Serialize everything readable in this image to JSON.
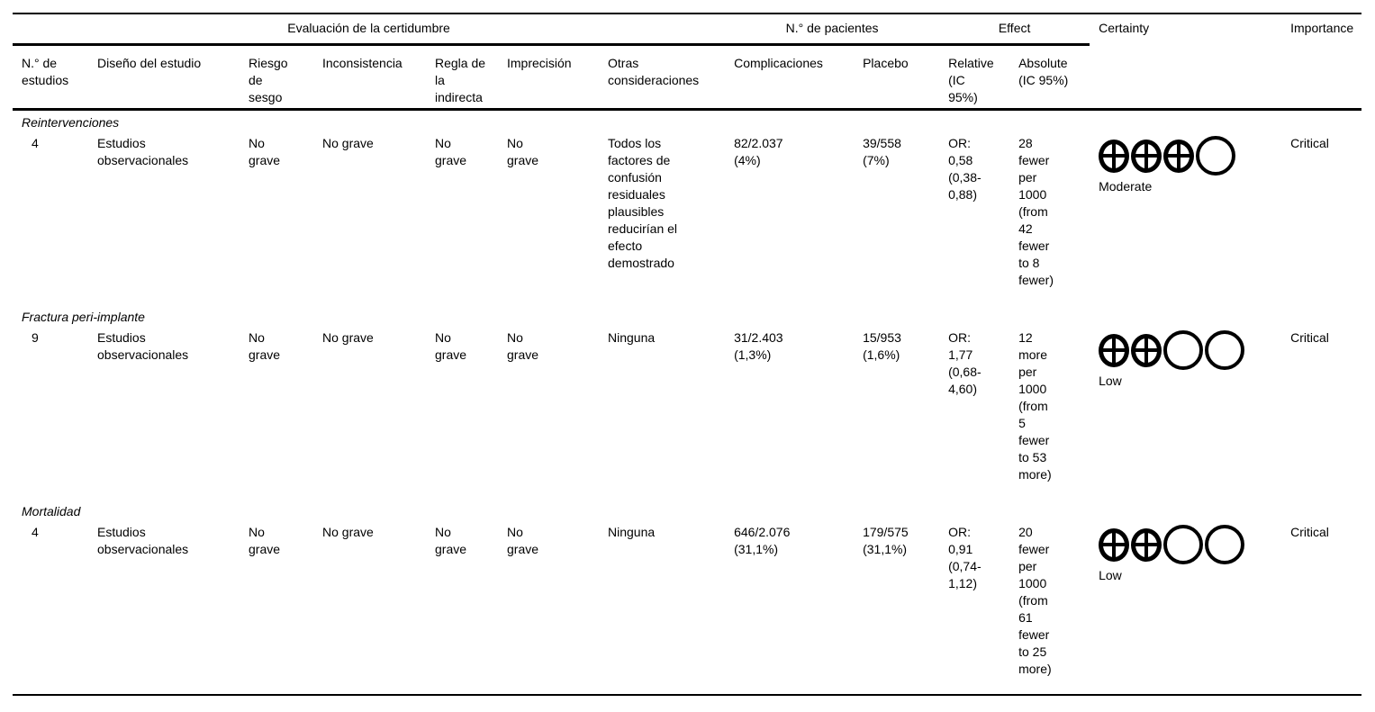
{
  "colors": {
    "text": "#000000",
    "rule": "#000000",
    "background": "#ffffff"
  },
  "table": {
    "groups": {
      "evaluacion": "Evaluación de la certidumbre",
      "pacientes": "N.° de pacientes",
      "effect": "Effect",
      "certainty": "Certainty",
      "importance": "Importance"
    },
    "columns": {
      "n_estudios": "N.° de\nestudios",
      "diseno": "Diseño del estudio",
      "riesgo": "Riesgo\nde\nsesgo",
      "inconsistencia": "Inconsistencia",
      "regla": "Regla de\nla\nindirecta",
      "imprecision": "Imprecisión",
      "otras": "Otras\nconsideraciones",
      "complicaciones": "Complicaciones",
      "placebo": "Placebo",
      "relative": "Relative\n(IC\n95%)",
      "absolute": "Absolute\n(IC 95%)"
    },
    "sections": [
      {
        "title": "Reintervenciones",
        "row": {
          "n_estudios": "4",
          "diseno": "Estudios\nobservacionales",
          "riesgo": "No\ngrave",
          "inconsistencia": "No grave",
          "regla": "No\ngrave",
          "imprecision": "No\ngrave",
          "otras": "Todos los\nfactores de\nconfusión\nresiduales\nplausibles\nreducirían el\nefecto\ndemostrado",
          "complicaciones": "82/2.037\n(4%)",
          "placebo": "39/558\n(7%)",
          "relative": "OR:\n0,58\n(0,38-\n0,88)",
          "absolute": "28\nfewer\nper\n1000\n(from\n42\nfewer\nto 8\nfewer)",
          "certainty": {
            "icons": [
              "plus",
              "plus",
              "plus",
              "empty"
            ],
            "label": "Moderate"
          },
          "importance": "Critical"
        }
      },
      {
        "title": "Fractura peri-implante",
        "row": {
          "n_estudios": "9",
          "diseno": "Estudios\nobservacionales",
          "riesgo": "No\ngrave",
          "inconsistencia": "No grave",
          "regla": "No\ngrave",
          "imprecision": "No\ngrave",
          "otras": "Ninguna",
          "complicaciones": "31/2.403\n(1,3%)",
          "placebo": "15/953\n(1,6%)",
          "relative": "OR:\n1,77\n(0,68-\n4,60)",
          "absolute": "12\nmore\nper\n1000\n(from\n5\nfewer\nto 53\nmore)",
          "certainty": {
            "icons": [
              "plus",
              "plus",
              "empty",
              "empty"
            ],
            "label": "Low"
          },
          "importance": "Critical"
        }
      },
      {
        "title": "Mortalidad",
        "row": {
          "n_estudios": "4",
          "diseno": "Estudios\nobservacionales",
          "riesgo": "No\ngrave",
          "inconsistencia": "No grave",
          "regla": "No\ngrave",
          "imprecision": "No\ngrave",
          "otras": "Ninguna",
          "complicaciones": "646/2.076\n(31,1%)",
          "placebo": "179/575\n(31,1%)",
          "relative": "OR:\n0,91\n(0,74-\n1,12)",
          "absolute": "20\nfewer\nper\n1000\n(from\n61\nfewer\nto 25\nmore)",
          "certainty": {
            "icons": [
              "plus",
              "plus",
              "empty",
              "empty"
            ],
            "label": "Low"
          },
          "importance": "Critical"
        }
      }
    ]
  }
}
